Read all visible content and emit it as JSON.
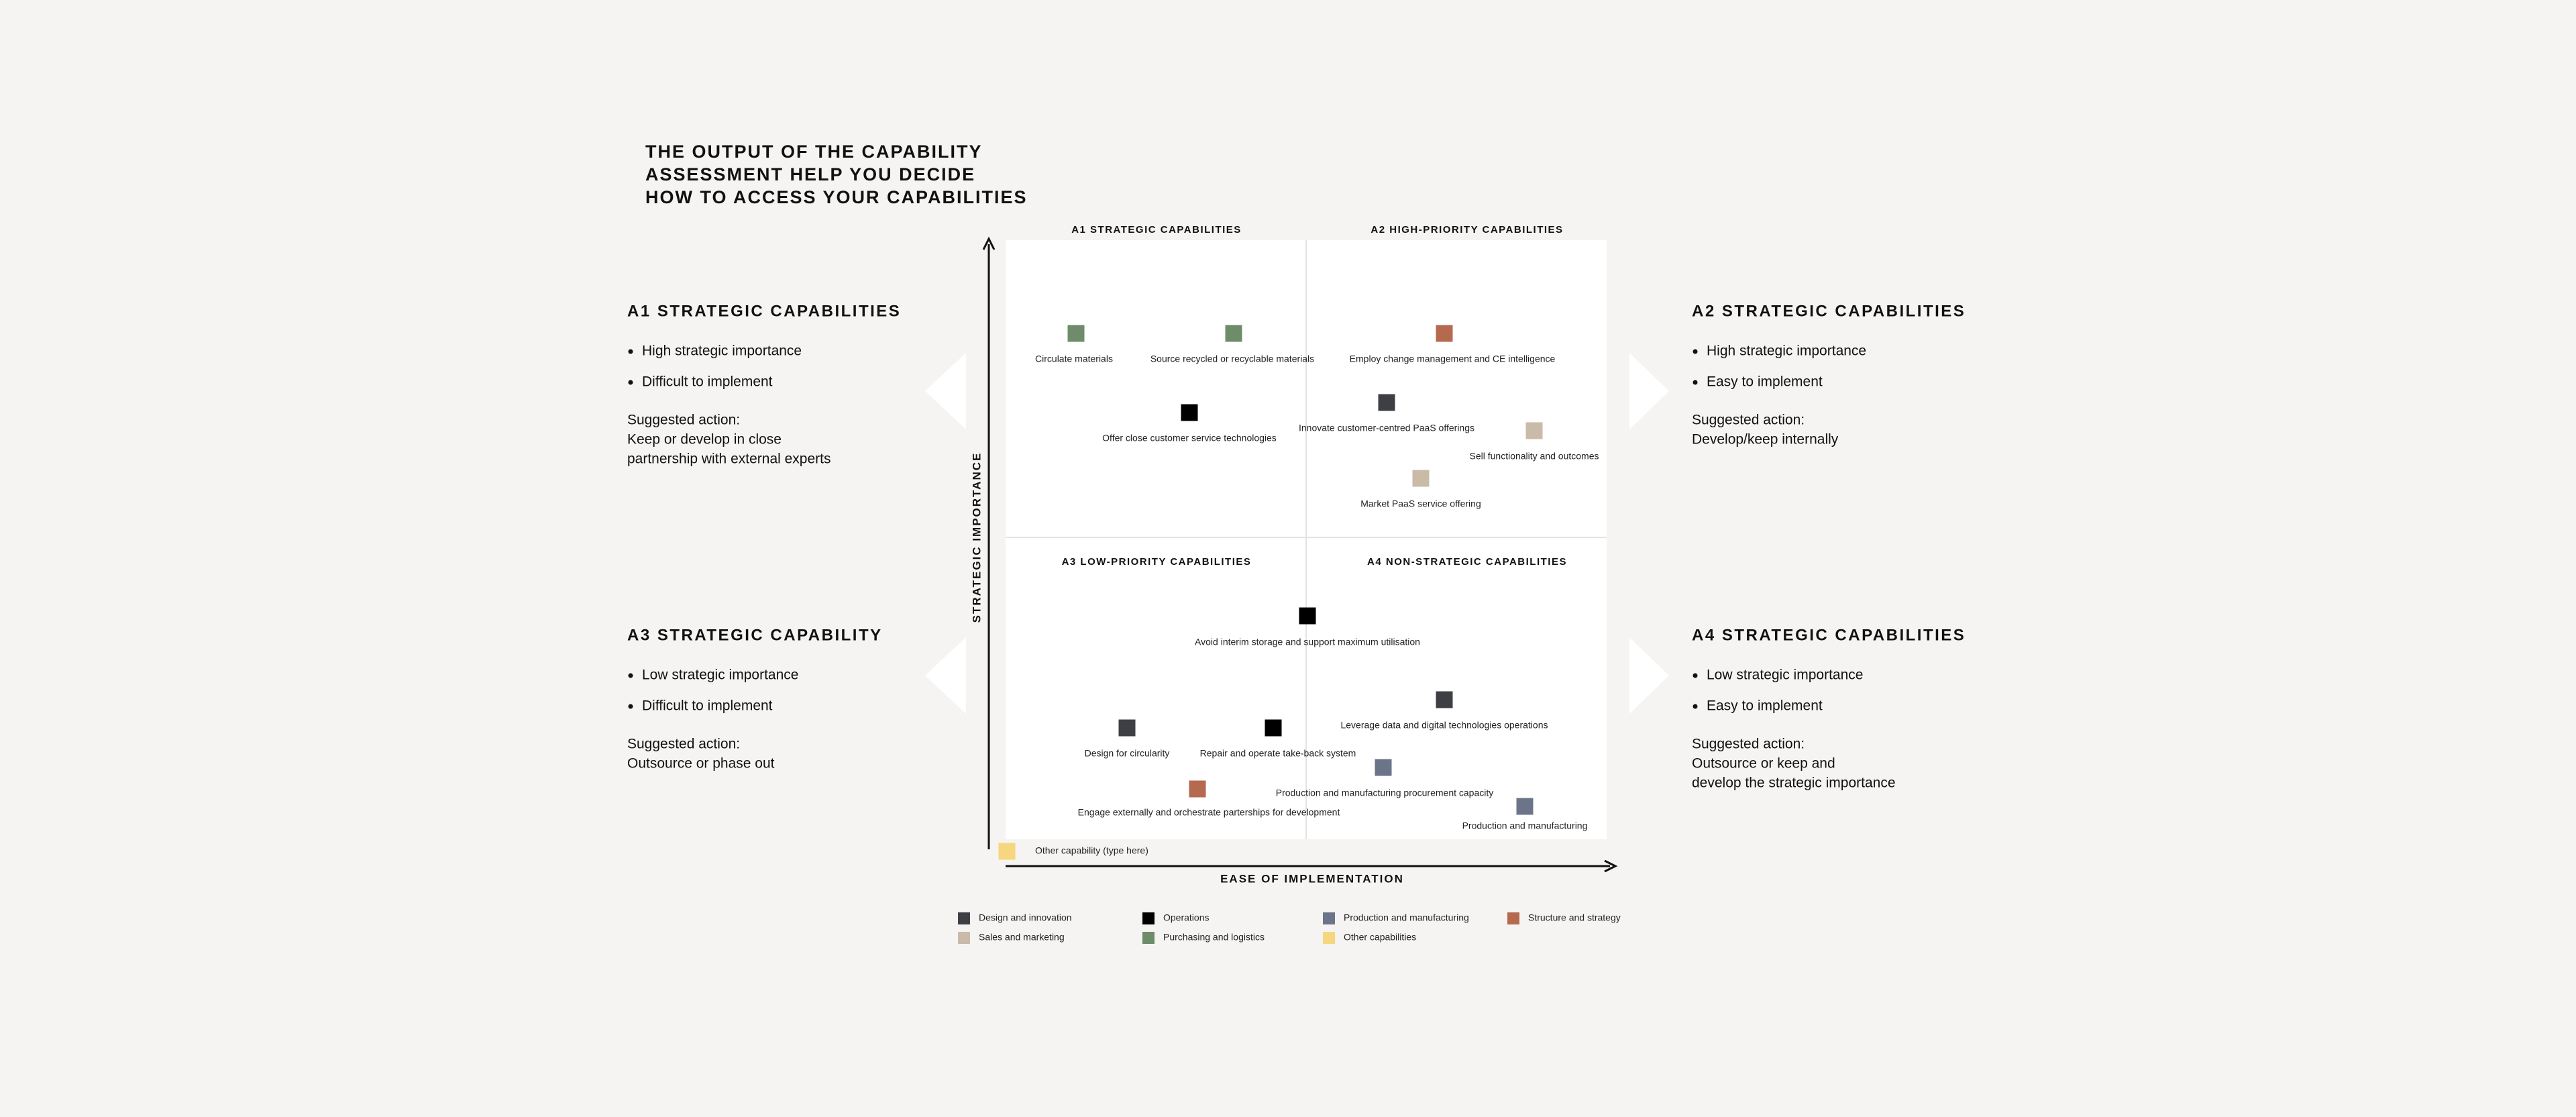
{
  "header": {
    "title_lines": [
      "THE OUTPUT OF THE CAPABILITY",
      "ASSESSMENT HELP YOU DECIDE",
      "HOW TO ACCESS YOUR CAPABILITIES"
    ]
  },
  "matrix": {
    "quadrant_labels": [
      "A1 STRATEGIC CAPABILITIES",
      "A2 HIGH-PRIORITY CAPABILITIES",
      "A3 LOW-PRIORITY CAPABILITIES",
      "A4 NON-STRATEGIC CAPABILITIES"
    ],
    "y_axis_label": "STRATEGIC IMPORTANCE",
    "x_axis_label": "EASE OF IMPLEMENTATION",
    "items": [
      {
        "label": "Circulate materials",
        "color": "#6e8c69"
      },
      {
        "label": "Source recycled or recyclable materials",
        "color": "#6e8c69"
      },
      {
        "label": "Employ change management and CE intelligence",
        "color": "#b5694f"
      },
      {
        "label": "Offer close customer service technologies",
        "color": "#000000"
      },
      {
        "label": "Innovate customer-centred PaaS offerings",
        "color": "#3d3f45"
      },
      {
        "label": "Sell functionality and outcomes",
        "color": "#c9bba8"
      },
      {
        "label": "Market PaaS service offering",
        "color": "#c9bba8"
      },
      {
        "label": "Avoid interim storage and support maximum utilisation",
        "color": "#000000"
      },
      {
        "label": "Leverage data and digital technologies operations",
        "color": "#3d3f45"
      },
      {
        "label": "Design for circularity",
        "color": "#3d3f45"
      },
      {
        "label": "Repair and operate take-back system",
        "color": "#000000"
      },
      {
        "label": "Production and manufacturing procurement capacity",
        "color": "#6b7489"
      },
      {
        "label": "Engage externally and orchestrate parterships for development",
        "color": "#b5694f"
      },
      {
        "label": "Production and manufacturing",
        "color": "#6b7489"
      },
      {
        "label": "Other capability (type here)",
        "color": "#f6d67e"
      }
    ]
  },
  "legend": [
    {
      "name": "Design and innovation",
      "color": "#3d3f45"
    },
    {
      "name": "Operations",
      "color": "#000000"
    },
    {
      "name": "Production and manufacturing",
      "color": "#6b7489"
    },
    {
      "name": "Structure and strategy",
      "color": "#b5694f"
    },
    {
      "name": "Sales and marketing",
      "color": "#c9bba8"
    },
    {
      "name": "Purchasing and logistics",
      "color": "#6e8c69"
    },
    {
      "name": "Other capabilities",
      "color": "#f6d67e"
    }
  ],
  "panels": [
    {
      "heading": "A1 STRATEGIC CAPABILITIES",
      "bullets": [
        "High strategic importance",
        "Difficult to implement"
      ],
      "action_label": "Suggested action:",
      "action_lines": [
        "Keep or develop in close",
        "partnership with external experts"
      ]
    },
    {
      "heading": "A2 STRATEGIC CAPABILITIES",
      "bullets": [
        "High strategic importance",
        "Easy to implement"
      ],
      "action_label": "Suggested action:",
      "action_lines": [
        "Develop/keep internally"
      ]
    },
    {
      "heading": "A3 STRATEGIC CAPABILITY",
      "bullets": [
        "Low strategic importance",
        "Difficult to implement"
      ],
      "action_label": "Suggested action:",
      "action_lines": [
        "Outsource or phase out"
      ]
    },
    {
      "heading": "A4 STRATEGIC CAPABILITIES",
      "bullets": [
        "Low strategic importance",
        "Easy to implement"
      ],
      "action_label": "Suggested action:",
      "action_lines": [
        "Outsource or keep and",
        "develop the strategic importance"
      ]
    }
  ]
}
